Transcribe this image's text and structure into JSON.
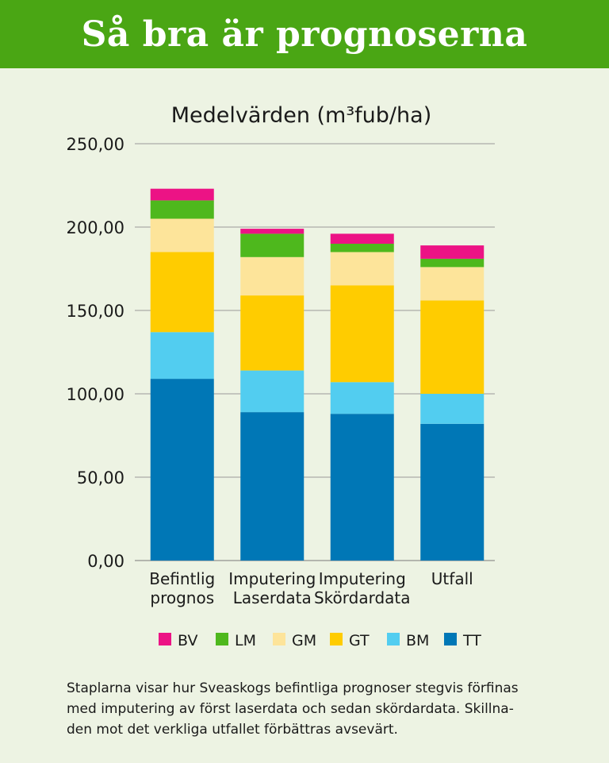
{
  "header": {
    "title": "Så bra är prognoserna"
  },
  "chart_data": {
    "type": "bar",
    "stacked": true,
    "title": "Medelvärden (m³fub/ha)",
    "categories": [
      [
        "Befintlig",
        "prognos"
      ],
      [
        "Imputering",
        "Laserdata"
      ],
      [
        "Imputering",
        "Skördardata"
      ],
      [
        "Utfall"
      ]
    ],
    "ylim": [
      0,
      250
    ],
    "yticks": [
      0,
      50,
      100,
      150,
      200,
      250
    ],
    "ytick_labels": [
      "0,00",
      "50,00",
      "100,00",
      "150,00",
      "200,00",
      "250,00"
    ],
    "grid": true,
    "legend_position": "bottom",
    "series": [
      {
        "name": "TT",
        "color": "#0077b6",
        "values": [
          109,
          89,
          88,
          82
        ]
      },
      {
        "name": "BM",
        "color": "#52cdf0",
        "values": [
          28,
          25,
          19,
          18
        ]
      },
      {
        "name": "GT",
        "color": "#ffcc00",
        "values": [
          48,
          45,
          58,
          56
        ]
      },
      {
        "name": "GM",
        "color": "#fde49a",
        "values": [
          20,
          23,
          20,
          20
        ]
      },
      {
        "name": "LM",
        "color": "#4eb81d",
        "values": [
          11,
          14,
          5,
          5
        ]
      },
      {
        "name": "BV",
        "color": "#ec1385",
        "values": [
          7,
          3,
          6,
          8
        ]
      }
    ],
    "legend_order": [
      "BV",
      "LM",
      "GM",
      "GT",
      "BM",
      "TT"
    ]
  },
  "caption": {
    "lines": [
      "Staplarna visar hur Sveaskogs befintliga prognoser stegvis förfinas",
      "med imputering av först laserdata och sedan skördardata. Skillna-",
      "den mot det verkliga utfallet förbättras avsevärt."
    ]
  }
}
